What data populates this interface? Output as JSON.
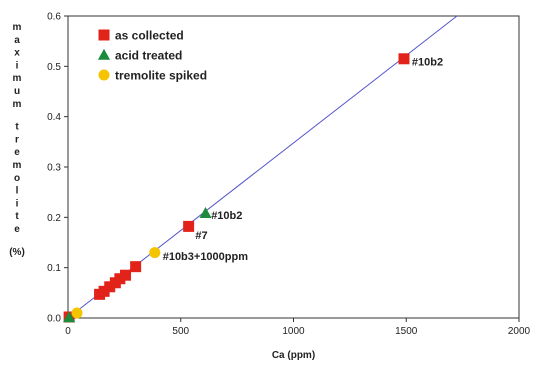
{
  "chart_data": {
    "type": "scatter",
    "xlabel": "Ca (ppm)",
    "ylabel": "maximum tremolite (%)",
    "xlim": [
      0,
      2000
    ],
    "ylim": [
      0,
      0.6
    ],
    "x_ticks": [
      "0",
      "500",
      "1000",
      "1500",
      "2000"
    ],
    "y_ticks": [
      "0.0",
      "0.1",
      "0.2",
      "0.3",
      "0.4",
      "0.5",
      "0.6"
    ],
    "grid": false,
    "legend_position": "top-left",
    "series": [
      {
        "name": "as collected",
        "marker": "square",
        "color": "#e2231a",
        "points": [
          {
            "x": 5,
            "y": 0.002
          },
          {
            "x": 140,
            "y": 0.047
          },
          {
            "x": 160,
            "y": 0.053
          },
          {
            "x": 185,
            "y": 0.062
          },
          {
            "x": 210,
            "y": 0.07
          },
          {
            "x": 230,
            "y": 0.078
          },
          {
            "x": 255,
            "y": 0.085
          },
          {
            "x": 300,
            "y": 0.102
          },
          {
            "x": 535,
            "y": 0.182
          },
          {
            "x": 1490,
            "y": 0.515
          }
        ]
      },
      {
        "name": "acid treated",
        "marker": "triangle",
        "color": "#1a8c3c",
        "points": [
          {
            "x": 5,
            "y": 0.001
          },
          {
            "x": 610,
            "y": 0.208
          }
        ]
      },
      {
        "name": "tremolite spiked",
        "marker": "circle",
        "color": "#f5c400",
        "points": [
          {
            "x": 40,
            "y": 0.01
          },
          {
            "x": 385,
            "y": 0.13
          }
        ]
      }
    ],
    "fit_line": {
      "color": "#5555cc",
      "points": [
        {
          "x": 0,
          "y": 0
        },
        {
          "x": 1725,
          "y": 0.6
        }
      ]
    },
    "annotations": [
      {
        "text": "#10b2",
        "x": 1525,
        "y": 0.51
      },
      {
        "text": "#10b2",
        "x": 635,
        "y": 0.205
      },
      {
        "text": "#7",
        "x": 565,
        "y": 0.165
      },
      {
        "text": "#10b3+1000ppm",
        "x": 420,
        "y": 0.123
      }
    ]
  }
}
